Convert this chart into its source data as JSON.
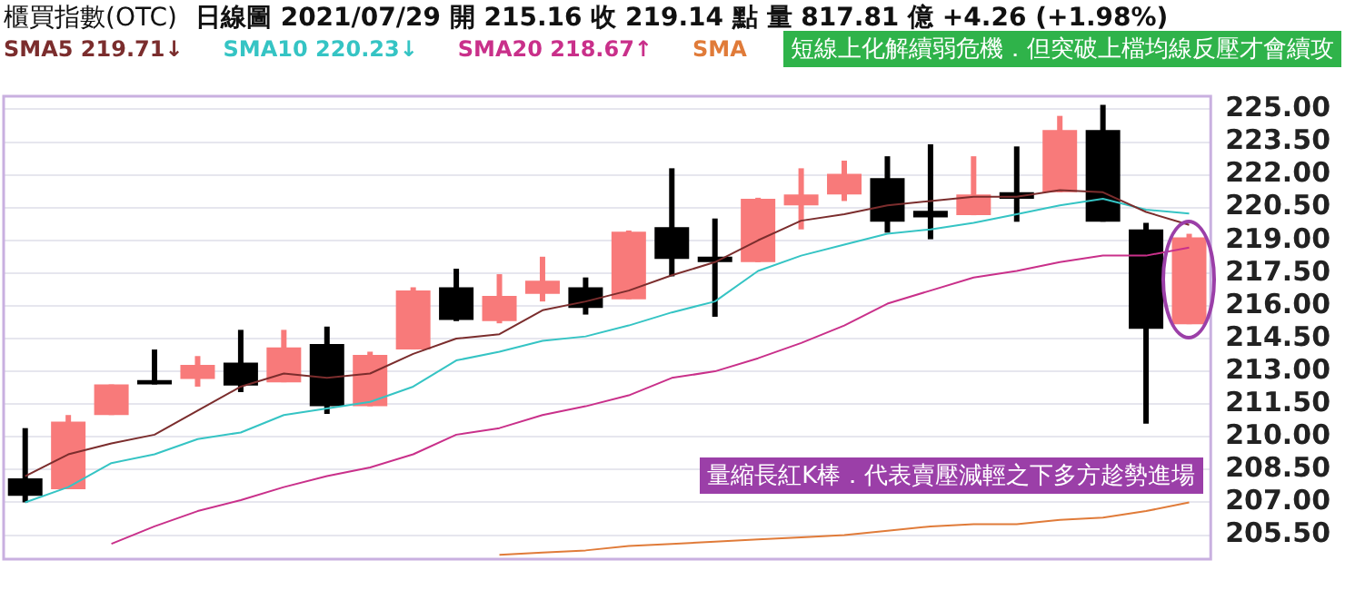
{
  "chart_data": {
    "type": "candlestick",
    "title": "櫃買指數(OTC)",
    "subtitle": "日線圖  2021/07/29  開 215.16  收 219.14  點  量 817.81 億  +4.26 (+1.98%)",
    "categories": [
      null,
      null,
      null,
      null,
      null,
      null,
      null,
      null,
      null,
      null,
      null,
      null,
      null,
      null,
      null,
      null,
      null,
      null,
      null,
      null,
      null,
      null,
      null,
      null,
      null,
      null,
      null,
      null
    ],
    "ohlc": [
      [
        208.1,
        210.4,
        207.0,
        207.3
      ],
      [
        207.6,
        211.0,
        207.6,
        210.7
      ],
      [
        211.0,
        212.4,
        211.0,
        212.4
      ],
      [
        212.6,
        214.0,
        212.4,
        212.4
      ],
      [
        212.65,
        213.7,
        212.3,
        213.3
      ],
      [
        213.4,
        214.9,
        212.05,
        212.35
      ],
      [
        212.5,
        214.9,
        212.5,
        214.1
      ],
      [
        214.25,
        215.05,
        211.05,
        211.4
      ],
      [
        211.4,
        213.9,
        211.4,
        213.75
      ],
      [
        214.0,
        216.85,
        214.0,
        216.7
      ],
      [
        216.85,
        217.7,
        215.3,
        215.35
      ],
      [
        215.3,
        217.45,
        215.2,
        216.45
      ],
      [
        216.55,
        218.25,
        216.2,
        217.15
      ],
      [
        216.85,
        217.3,
        215.6,
        215.9
      ],
      [
        216.3,
        219.45,
        216.3,
        219.4
      ],
      [
        219.6,
        222.3,
        217.35,
        218.15
      ],
      [
        218.25,
        220.0,
        215.5,
        218.0
      ],
      [
        218.0,
        220.95,
        218.0,
        220.9
      ],
      [
        220.6,
        222.3,
        219.5,
        221.1
      ],
      [
        221.1,
        222.65,
        220.8,
        222.05
      ],
      [
        221.85,
        222.85,
        219.35,
        219.85
      ],
      [
        220.35,
        223.4,
        219.05,
        220.05
      ],
      [
        220.15,
        222.85,
        220.15,
        221.1
      ],
      [
        221.2,
        223.3,
        219.85,
        220.9
      ],
      [
        221.2,
        224.7,
        221.2,
        224.05
      ],
      [
        224.05,
        225.2,
        219.85,
        219.85
      ],
      [
        219.5,
        219.8,
        210.6,
        214.95
      ],
      [
        215.16,
        219.3,
        215.16,
        219.14
      ]
    ],
    "colors": [
      "#000000",
      "#f87a7a",
      "#f87a7a",
      "#000000",
      "#f87a7a",
      "#000000",
      "#f87a7a",
      "#000000",
      "#f87a7a",
      "#f87a7a",
      "#000000",
      "#f87a7a",
      "#f87a7a",
      "#000000",
      "#f87a7a",
      "#000000",
      "#000000",
      "#f87a7a",
      "#f87a7a",
      "#f87a7a",
      "#000000",
      "#000000",
      "#f87a7a",
      "#000000",
      "#f87a7a",
      "#000000",
      "#000000",
      "#f87a7a"
    ],
    "series": [
      {
        "type": "line",
        "name": "SMA5 219.71↓",
        "color": "#7b2d2d",
        "values": [
          208.2,
          209.2,
          209.7,
          210.1,
          211.2,
          212.3,
          212.9,
          212.7,
          212.9,
          213.8,
          214.5,
          214.7,
          215.8,
          216.2,
          216.7,
          217.4,
          218.0,
          219.0,
          219.9,
          220.2,
          220.6,
          220.8,
          221.0,
          221.0,
          221.3,
          221.2,
          220.3,
          219.71
        ]
      },
      {
        "type": "line",
        "name": "SMA10 220.23↓",
        "color": "#35c4c4",
        "values": [
          207.0,
          207.7,
          208.8,
          209.2,
          209.9,
          210.2,
          211.0,
          211.3,
          211.6,
          212.3,
          213.5,
          213.9,
          214.4,
          214.6,
          215.1,
          215.7,
          216.2,
          217.6,
          218.3,
          218.8,
          219.3,
          219.5,
          219.8,
          220.2,
          220.6,
          220.9,
          220.4,
          220.23
        ]
      },
      {
        "type": "line",
        "name": "SMA20 218.67↑",
        "color": "#c9308a",
        "values": [
          null,
          null,
          205.1,
          205.9,
          206.6,
          207.1,
          207.7,
          208.2,
          208.6,
          209.2,
          210.1,
          210.4,
          211.0,
          211.4,
          211.9,
          212.7,
          213.0,
          213.6,
          214.3,
          215.1,
          216.1,
          216.7,
          217.3,
          217.6,
          218.0,
          218.3,
          218.3,
          218.67
        ]
      },
      {
        "type": "line",
        "name": "SMA",
        "color": "#e07b39",
        "values": [
          null,
          null,
          null,
          null,
          null,
          null,
          null,
          null,
          null,
          null,
          null,
          204.6,
          204.7,
          204.8,
          205.0,
          205.1,
          205.2,
          205.3,
          205.4,
          205.5,
          205.7,
          205.9,
          206.0,
          206.0,
          206.2,
          206.3,
          206.6,
          207.0
        ]
      }
    ],
    "ylim": [
      204.4,
      225.6
    ],
    "yticks": [
      {
        "value": 205.5,
        "label": "205.50"
      },
      {
        "value": 207,
        "label": "207.00"
      },
      {
        "value": 208.5,
        "label": "208.50"
      },
      {
        "value": 210,
        "label": "210.00"
      },
      {
        "value": 211.5,
        "label": "211.50"
      },
      {
        "value": 213,
        "label": "213.00"
      },
      {
        "value": 214.5,
        "label": "214.50"
      },
      {
        "value": 216,
        "label": "216.00"
      },
      {
        "value": 217.5,
        "label": "217.50"
      },
      {
        "value": 219,
        "label": "219.00"
      },
      {
        "value": 220.5,
        "label": "220.50"
      },
      {
        "value": 222,
        "label": "222.00"
      },
      {
        "value": 223.5,
        "label": "223.50"
      },
      {
        "value": 225,
        "label": "225.00"
      }
    ],
    "grid": "y",
    "legend": "top left",
    "annotations": [
      "短線上化解續弱危機．但突破上檔均線反壓才會續攻",
      "量縮長紅K棒．代表賣壓減輕之下多方趁勢進場"
    ]
  }
}
